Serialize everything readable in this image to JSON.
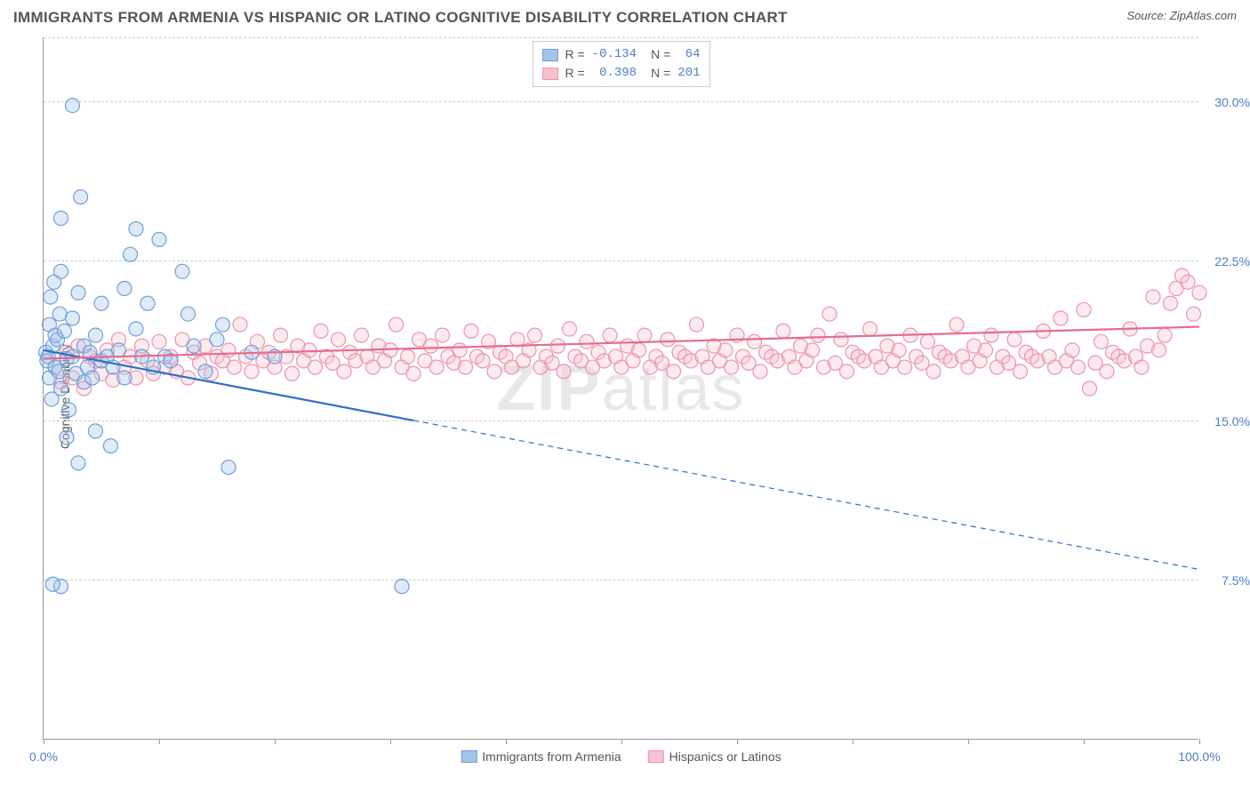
{
  "header": {
    "title": "IMMIGRANTS FROM ARMENIA VS HISPANIC OR LATINO COGNITIVE DISABILITY CORRELATION CHART",
    "source": "Source: ZipAtlas.com"
  },
  "chart": {
    "type": "scatter",
    "y_axis_label": "Cognitive Disability",
    "watermark": "ZIPatlas",
    "xlim": [
      0,
      100
    ],
    "ylim": [
      0,
      33
    ],
    "x_ticks": [
      0,
      10,
      20,
      30,
      40,
      50,
      60,
      70,
      80,
      90,
      100
    ],
    "x_tick_labels": {
      "0": "0.0%",
      "100": "100.0%"
    },
    "y_gridlines": [
      7.5,
      15.0,
      22.5,
      30.0
    ],
    "y_tick_labels": {
      "7.5": "7.5%",
      "15.0": "15.0%",
      "22.5": "22.5%",
      "30.0": "30.0%"
    },
    "background_color": "#ffffff",
    "grid_color": "#cccccc",
    "axis_color": "#999999",
    "tick_label_color": "#4a7fc9",
    "marker_radius": 8,
    "marker_stroke_width": 1.2,
    "marker_fill_opacity": 0.35,
    "series": [
      {
        "name": "Immigrants from Armenia",
        "color_fill": "#a3c4ea",
        "color_stroke": "#6f9fd8",
        "line_color": "#2e6fc9",
        "R": "-0.134",
        "N": "64",
        "regression": {
          "x1": 0,
          "y1": 18.3,
          "x2_solid": 32,
          "y2_solid": 15.0,
          "x2": 100,
          "y2": 8.0
        },
        "points": [
          [
            0.2,
            18.2
          ],
          [
            0.3,
            17.8
          ],
          [
            0.4,
            18.0
          ],
          [
            0.5,
            17.0
          ],
          [
            0.5,
            19.5
          ],
          [
            0.6,
            20.8
          ],
          [
            0.7,
            16.0
          ],
          [
            0.8,
            18.5
          ],
          [
            0.9,
            21.5
          ],
          [
            1.0,
            17.5
          ],
          [
            1.0,
            19.0
          ],
          [
            1.2,
            18.8
          ],
          [
            1.3,
            17.3
          ],
          [
            1.4,
            20.0
          ],
          [
            1.5,
            22.0
          ],
          [
            1.5,
            24.5
          ],
          [
            1.5,
            16.5
          ],
          [
            1.8,
            19.2
          ],
          [
            2.0,
            17.9
          ],
          [
            2.0,
            14.2
          ],
          [
            2.2,
            15.5
          ],
          [
            2.5,
            18.0
          ],
          [
            2.5,
            19.8
          ],
          [
            2.8,
            17.2
          ],
          [
            3.0,
            21.0
          ],
          [
            3.0,
            13.0
          ],
          [
            3.2,
            25.5
          ],
          [
            3.5,
            18.5
          ],
          [
            3.5,
            16.8
          ],
          [
            3.8,
            17.5
          ],
          [
            4.0,
            18.2
          ],
          [
            4.2,
            17.0
          ],
          [
            4.5,
            19.0
          ],
          [
            4.5,
            14.5
          ],
          [
            5.0,
            17.8
          ],
          [
            5.0,
            20.5
          ],
          [
            5.5,
            18.0
          ],
          [
            5.8,
            13.8
          ],
          [
            6.0,
            17.5
          ],
          [
            6.5,
            18.3
          ],
          [
            7.0,
            17.0
          ],
          [
            7.0,
            21.2
          ],
          [
            7.5,
            22.8
          ],
          [
            8.0,
            19.3
          ],
          [
            8.5,
            18.0
          ],
          [
            9.0,
            20.5
          ],
          [
            9.5,
            17.5
          ],
          [
            10.0,
            23.5
          ],
          [
            10.5,
            18.0
          ],
          [
            11.0,
            17.8
          ],
          [
            12.0,
            22.0
          ],
          [
            12.5,
            20.0
          ],
          [
            13.0,
            18.5
          ],
          [
            14.0,
            17.3
          ],
          [
            15.0,
            18.8
          ],
          [
            15.5,
            19.5
          ],
          [
            16.0,
            12.8
          ],
          [
            18.0,
            18.2
          ],
          [
            20.0,
            18.0
          ],
          [
            1.5,
            7.2
          ],
          [
            0.8,
            7.3
          ],
          [
            31.0,
            7.2
          ],
          [
            2.5,
            29.8
          ],
          [
            8.0,
            24.0
          ]
        ]
      },
      {
        "name": "Hispanics or Latinos",
        "color_fill": "#f7c2cd",
        "color_stroke": "#eb94aa",
        "line_color": "#e86b8d",
        "R": "0.398",
        "N": "201",
        "regression": {
          "x1": 0,
          "y1": 17.9,
          "x2_solid": 100,
          "y2_solid": 19.4,
          "x2": 100,
          "y2": 19.4
        },
        "points": [
          [
            1,
            17.5
          ],
          [
            1.5,
            16.8
          ],
          [
            2,
            18.2
          ],
          [
            2.5,
            17.0
          ],
          [
            3,
            18.5
          ],
          [
            3.5,
            16.5
          ],
          [
            4,
            18.0
          ],
          [
            4.5,
            17.8
          ],
          [
            5,
            17.2
          ],
          [
            5.5,
            18.3
          ],
          [
            6,
            16.9
          ],
          [
            6.5,
            18.8
          ],
          [
            7,
            17.5
          ],
          [
            7.5,
            18.0
          ],
          [
            8,
            17.0
          ],
          [
            8.5,
            18.5
          ],
          [
            9,
            17.8
          ],
          [
            9.5,
            17.2
          ],
          [
            10,
            18.7
          ],
          [
            10.5,
            17.5
          ],
          [
            11,
            18.0
          ],
          [
            11.5,
            17.3
          ],
          [
            12,
            18.8
          ],
          [
            12.5,
            17.0
          ],
          [
            13,
            18.2
          ],
          [
            13.5,
            17.7
          ],
          [
            14,
            18.5
          ],
          [
            14.5,
            17.2
          ],
          [
            15,
            18.0
          ],
          [
            15.5,
            17.8
          ],
          [
            16,
            18.3
          ],
          [
            16.5,
            17.5
          ],
          [
            17,
            19.5
          ],
          [
            17.5,
            18.0
          ],
          [
            18,
            17.3
          ],
          [
            18.5,
            18.7
          ],
          [
            19,
            17.8
          ],
          [
            19.5,
            18.2
          ],
          [
            20,
            17.5
          ],
          [
            20.5,
            19.0
          ],
          [
            21,
            18.0
          ],
          [
            21.5,
            17.2
          ],
          [
            22,
            18.5
          ],
          [
            22.5,
            17.8
          ],
          [
            23,
            18.3
          ],
          [
            23.5,
            17.5
          ],
          [
            24,
            19.2
          ],
          [
            24.5,
            18.0
          ],
          [
            25,
            17.7
          ],
          [
            25.5,
            18.8
          ],
          [
            26,
            17.3
          ],
          [
            26.5,
            18.2
          ],
          [
            27,
            17.8
          ],
          [
            27.5,
            19.0
          ],
          [
            28,
            18.0
          ],
          [
            28.5,
            17.5
          ],
          [
            29,
            18.5
          ],
          [
            29.5,
            17.8
          ],
          [
            30,
            18.3
          ],
          [
            30.5,
            19.5
          ],
          [
            31,
            17.5
          ],
          [
            31.5,
            18.0
          ],
          [
            32,
            17.2
          ],
          [
            32.5,
            18.8
          ],
          [
            33,
            17.8
          ],
          [
            33.5,
            18.5
          ],
          [
            34,
            17.5
          ],
          [
            34.5,
            19.0
          ],
          [
            35,
            18.0
          ],
          [
            35.5,
            17.7
          ],
          [
            36,
            18.3
          ],
          [
            36.5,
            17.5
          ],
          [
            37,
            19.2
          ],
          [
            37.5,
            18.0
          ],
          [
            38,
            17.8
          ],
          [
            38.5,
            18.7
          ],
          [
            39,
            17.3
          ],
          [
            39.5,
            18.2
          ],
          [
            40,
            18.0
          ],
          [
            40.5,
            17.5
          ],
          [
            41,
            18.8
          ],
          [
            41.5,
            17.8
          ],
          [
            42,
            18.3
          ],
          [
            42.5,
            19.0
          ],
          [
            43,
            17.5
          ],
          [
            43.5,
            18.0
          ],
          [
            44,
            17.7
          ],
          [
            44.5,
            18.5
          ],
          [
            45,
            17.3
          ],
          [
            45.5,
            19.3
          ],
          [
            46,
            18.0
          ],
          [
            46.5,
            17.8
          ],
          [
            47,
            18.7
          ],
          [
            47.5,
            17.5
          ],
          [
            48,
            18.2
          ],
          [
            48.5,
            17.8
          ],
          [
            49,
            19.0
          ],
          [
            49.5,
            18.0
          ],
          [
            50,
            17.5
          ],
          [
            50.5,
            18.5
          ],
          [
            51,
            17.8
          ],
          [
            51.5,
            18.3
          ],
          [
            52,
            19.0
          ],
          [
            52.5,
            17.5
          ],
          [
            53,
            18.0
          ],
          [
            53.5,
            17.7
          ],
          [
            54,
            18.8
          ],
          [
            54.5,
            17.3
          ],
          [
            55,
            18.2
          ],
          [
            55.5,
            18.0
          ],
          [
            56,
            17.8
          ],
          [
            56.5,
            19.5
          ],
          [
            57,
            18.0
          ],
          [
            57.5,
            17.5
          ],
          [
            58,
            18.5
          ],
          [
            58.5,
            17.8
          ],
          [
            59,
            18.3
          ],
          [
            59.5,
            17.5
          ],
          [
            60,
            19.0
          ],
          [
            60.5,
            18.0
          ],
          [
            61,
            17.7
          ],
          [
            61.5,
            18.7
          ],
          [
            62,
            17.3
          ],
          [
            62.5,
            18.2
          ],
          [
            63,
            18.0
          ],
          [
            63.5,
            17.8
          ],
          [
            64,
            19.2
          ],
          [
            64.5,
            18.0
          ],
          [
            65,
            17.5
          ],
          [
            65.5,
            18.5
          ],
          [
            66,
            17.8
          ],
          [
            66.5,
            18.3
          ],
          [
            67,
            19.0
          ],
          [
            67.5,
            17.5
          ],
          [
            68,
            20.0
          ],
          [
            68.5,
            17.7
          ],
          [
            69,
            18.8
          ],
          [
            69.5,
            17.3
          ],
          [
            70,
            18.2
          ],
          [
            70.5,
            18.0
          ],
          [
            71,
            17.8
          ],
          [
            71.5,
            19.3
          ],
          [
            72,
            18.0
          ],
          [
            72.5,
            17.5
          ],
          [
            73,
            18.5
          ],
          [
            73.5,
            17.8
          ],
          [
            74,
            18.3
          ],
          [
            74.5,
            17.5
          ],
          [
            75,
            19.0
          ],
          [
            75.5,
            18.0
          ],
          [
            76,
            17.7
          ],
          [
            76.5,
            18.7
          ],
          [
            77,
            17.3
          ],
          [
            77.5,
            18.2
          ],
          [
            78,
            18.0
          ],
          [
            78.5,
            17.8
          ],
          [
            79,
            19.5
          ],
          [
            79.5,
            18.0
          ],
          [
            80,
            17.5
          ],
          [
            80.5,
            18.5
          ],
          [
            81,
            17.8
          ],
          [
            81.5,
            18.3
          ],
          [
            82,
            19.0
          ],
          [
            82.5,
            17.5
          ],
          [
            83,
            18.0
          ],
          [
            83.5,
            17.7
          ],
          [
            84,
            18.8
          ],
          [
            84.5,
            17.3
          ],
          [
            85,
            18.2
          ],
          [
            85.5,
            18.0
          ],
          [
            86,
            17.8
          ],
          [
            86.5,
            19.2
          ],
          [
            87,
            18.0
          ],
          [
            87.5,
            17.5
          ],
          [
            88,
            19.8
          ],
          [
            88.5,
            17.8
          ],
          [
            89,
            18.3
          ],
          [
            89.5,
            17.5
          ],
          [
            90,
            20.2
          ],
          [
            90.5,
            16.5
          ],
          [
            91,
            17.7
          ],
          [
            91.5,
            18.7
          ],
          [
            92,
            17.3
          ],
          [
            92.5,
            18.2
          ],
          [
            93,
            18.0
          ],
          [
            93.5,
            17.8
          ],
          [
            94,
            19.3
          ],
          [
            94.5,
            18.0
          ],
          [
            95,
            17.5
          ],
          [
            95.5,
            18.5
          ],
          [
            96,
            20.8
          ],
          [
            96.5,
            18.3
          ],
          [
            97,
            19.0
          ],
          [
            97.5,
            20.5
          ],
          [
            98,
            21.2
          ],
          [
            98.5,
            21.8
          ],
          [
            99,
            21.5
          ],
          [
            99.5,
            20.0
          ],
          [
            100,
            21.0
          ]
        ]
      }
    ],
    "bottom_legend": [
      {
        "label": "Immigrants from Armenia",
        "fill": "#a3c4ea",
        "stroke": "#6f9fd8"
      },
      {
        "label": "Hispanics or Latinos",
        "fill": "#f7c2cd",
        "stroke": "#eb94aa"
      }
    ],
    "top_legend_prefix": {
      "r": "R = ",
      "n": "N = "
    }
  }
}
